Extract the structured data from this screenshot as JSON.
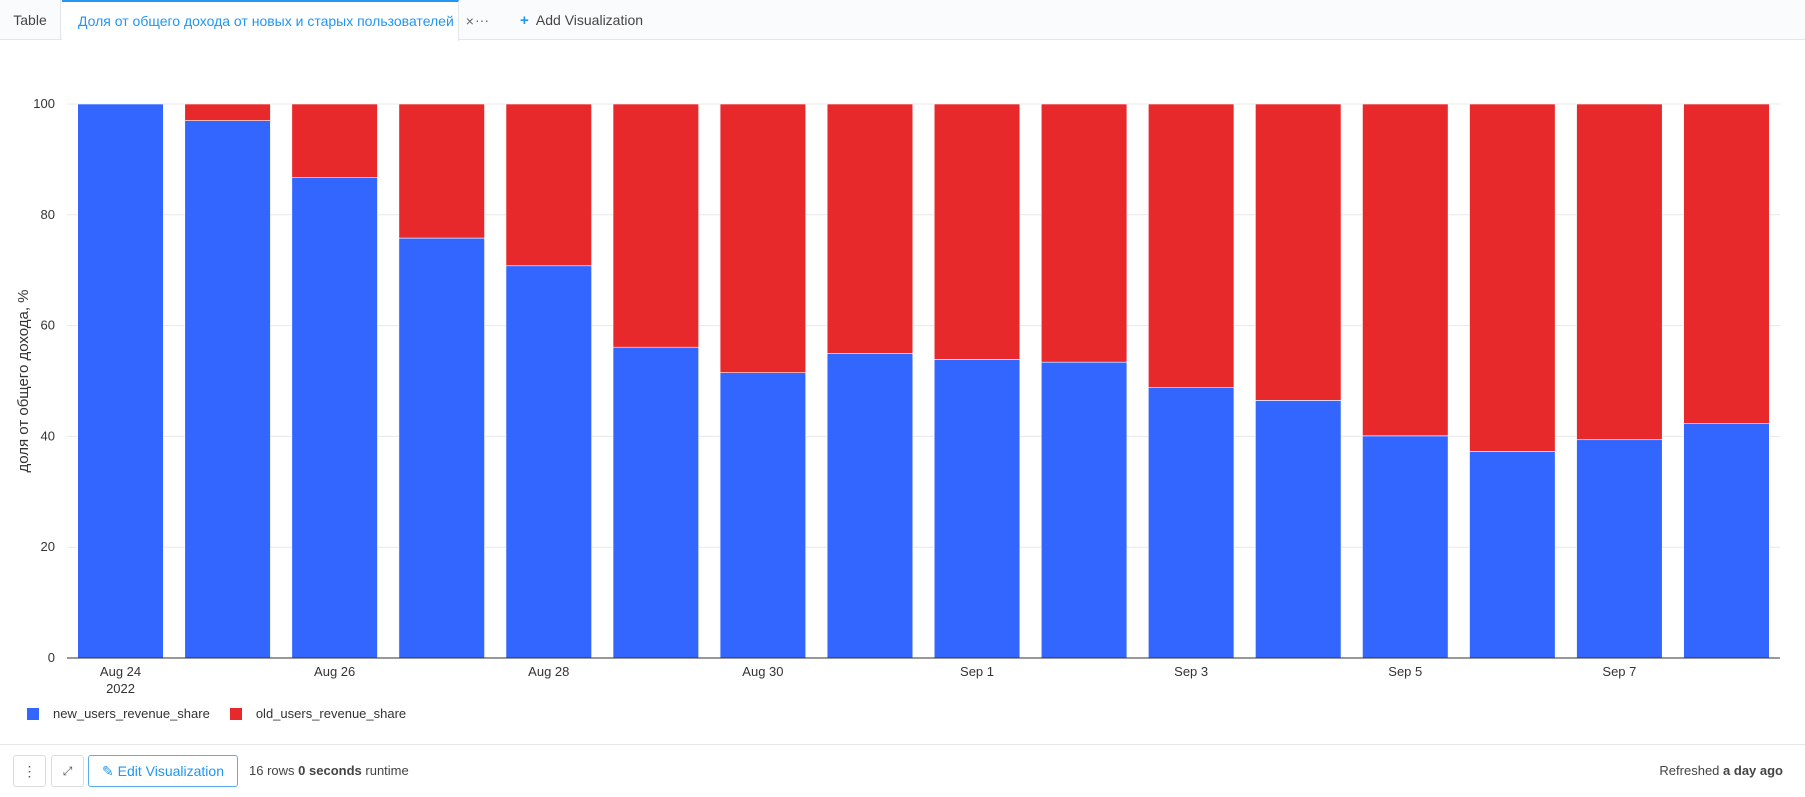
{
  "tabs": {
    "table": "Table",
    "active": "Доля от общего дохода от новых и старых пользователей",
    "close": "×",
    "more": "···",
    "add": "Add Visualization",
    "add_icon": "+"
  },
  "colors": {
    "new": "#3366ff",
    "old": "#e8292b",
    "accent": "#2196f3"
  },
  "chart_data": {
    "type": "bar",
    "stacked": true,
    "categories": [
      "2022-08-24",
      "2022-08-25",
      "2022-08-26",
      "2022-08-27",
      "2022-08-28",
      "2022-08-29",
      "2022-08-30",
      "2022-08-31",
      "2022-09-01",
      "2022-09-02",
      "2022-09-03",
      "2022-09-04",
      "2022-09-05",
      "2022-09-06",
      "2022-09-07",
      "2022-09-08"
    ],
    "series": [
      {
        "name": "new_users_revenue_share",
        "values": [
          100,
          97,
          86.7,
          75.8,
          70.8,
          56.1,
          51.5,
          55,
          53.9,
          53.4,
          48.8,
          46.5,
          40.1,
          37.3,
          39.4,
          42.3
        ]
      },
      {
        "name": "old_users_revenue_share",
        "values": [
          0,
          3,
          13.3,
          24.2,
          29.2,
          43.9,
          48.5,
          45,
          46.1,
          46.6,
          51.2,
          53.5,
          59.9,
          62.7,
          60.6,
          57.7
        ]
      }
    ],
    "x_tick_labels": [
      {
        "index": 0,
        "label": "Aug 24",
        "sublabel": "2022"
      },
      {
        "index": 2,
        "label": "Aug 26"
      },
      {
        "index": 4,
        "label": "Aug 28"
      },
      {
        "index": 6,
        "label": "Aug 30"
      },
      {
        "index": 8,
        "label": "Sep 1"
      },
      {
        "index": 10,
        "label": "Sep 3"
      },
      {
        "index": 12,
        "label": "Sep 5"
      },
      {
        "index": 14,
        "label": "Sep 7"
      }
    ],
    "y_ticks": [
      "0",
      "20",
      "40",
      "60",
      "80",
      "100"
    ],
    "ylabel": "доля от общего дохода, %",
    "xlabel": "",
    "ylim": [
      0,
      100
    ],
    "grid": true,
    "legend": "bottom-left"
  },
  "footer": {
    "menu_icon": "⋮",
    "expand_icon": "⤢",
    "edit_icon": "✎",
    "edit_label": "Edit Visualization",
    "rows_count": "16",
    "rows_word": "rows",
    "runtime_value": "0 seconds",
    "runtime_word": "runtime",
    "refreshed_prefix": "Refreshed",
    "refreshed_value": "a day ago"
  }
}
